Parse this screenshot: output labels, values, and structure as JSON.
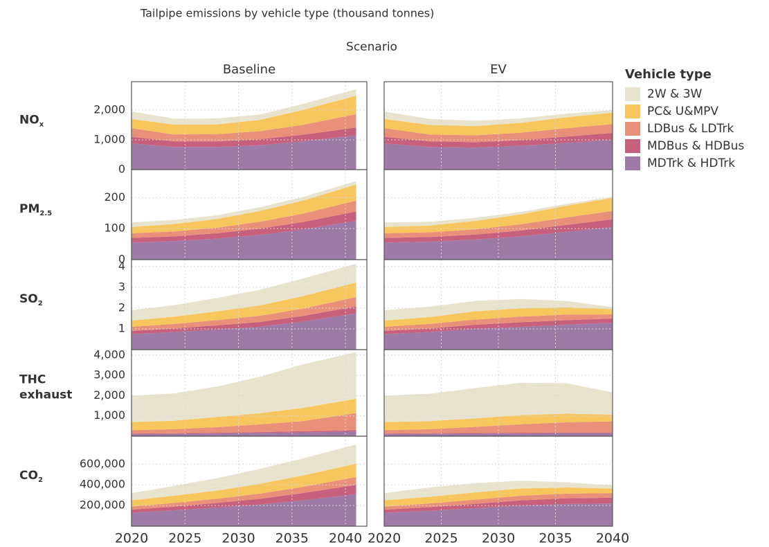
{
  "chart_data": {
    "type": "area",
    "title": "Tailpipe emissions by vehicle type (thousand tonnes)",
    "facet_title": "Scenario",
    "legend_title": "Vehicle type",
    "grid": true,
    "series": [
      {
        "name": "2W & 3W",
        "color": "#e8e3cf"
      },
      {
        "name": "PC& U&MPV",
        "color": "#f7c65d"
      },
      {
        "name": "LDBus & LDTrk",
        "color": "#e8907a"
      },
      {
        "name": "MDBus & HDBus",
        "color": "#c6607c"
      },
      {
        "name": "MDTrk & HDTrk",
        "color": "#9e7aa6"
      }
    ],
    "columns": [
      {
        "name": "Baseline",
        "x": [
          2020,
          2024,
          2028,
          2032,
          2036,
          2041
        ],
        "xlim": [
          2020,
          2042
        ],
        "xticks": [
          2020,
          2025,
          2030,
          2035,
          2040
        ]
      },
      {
        "name": "EV",
        "x": [
          2020,
          2024,
          2028,
          2032,
          2036,
          2040
        ],
        "xlim": [
          2020,
          2040
        ],
        "xticks": [
          2020,
          2025,
          2030,
          2035,
          2040
        ]
      }
    ],
    "rows": [
      {
        "label": [
          "NO"
        ],
        "sub": "x",
        "ylim": [
          0,
          2950
        ],
        "yticks": [
          0,
          {
            "value": 1000,
            "label": "1,000"
          },
          {
            "value": 2000,
            "label": "2,000"
          }
        ],
        "panels": [
          [
            [
              250,
              200,
              200,
              180,
              200,
              220
            ],
            [
              310,
              330,
              330,
              380,
              500,
              620
            ],
            [
              290,
              230,
              240,
              270,
              330,
              450
            ],
            [
              220,
              190,
              190,
              200,
              220,
              260
            ],
            [
              880,
              760,
              760,
              820,
              950,
              1150
            ]
          ],
          [
            [
              250,
              200,
              180,
              150,
              120,
              90
            ],
            [
              310,
              320,
              310,
              330,
              370,
              380
            ],
            [
              290,
              230,
              230,
              250,
              280,
              300
            ],
            [
              220,
              190,
              180,
              190,
              210,
              230
            ],
            [
              880,
              760,
              740,
              800,
              900,
              1000
            ]
          ]
        ]
      },
      {
        "label": [
          "PM"
        ],
        "sub": "2.5",
        "ylim": [
          0,
          290
        ],
        "yticks": [
          0,
          100,
          200
        ],
        "panels": [
          [
            [
              15,
              13,
              12,
              12,
              12,
              11
            ],
            [
              20,
              24,
              28,
              35,
              42,
              52
            ],
            [
              15,
              16,
              18,
              22,
              27,
              35
            ],
            [
              15,
              15,
              17,
              20,
              24,
              30
            ],
            [
              55,
              60,
              68,
              80,
              97,
              125
            ]
          ],
          [
            [
              15,
              12,
              10,
              8,
              6,
              4
            ],
            [
              20,
              22,
              27,
              32,
              38,
              42
            ],
            [
              15,
              15,
              17,
              20,
              24,
              27
            ],
            [
              15,
              15,
              16,
              19,
              22,
              25
            ],
            [
              55,
              58,
              65,
              75,
              90,
              105
            ]
          ]
        ]
      },
      {
        "label": [
          "SO"
        ],
        "sub": "2",
        "ylim": [
          0,
          4.33
        ],
        "yticks": [
          1,
          2,
          3,
          4
        ],
        "panels": [
          [
            [
              0.5,
              0.55,
              0.65,
              0.75,
              0.85,
              0.9
            ],
            [
              0.3,
              0.35,
              0.42,
              0.5,
              0.6,
              0.7
            ],
            [
              0.2,
              0.22,
              0.25,
              0.3,
              0.35,
              0.45
            ],
            [
              0.15,
              0.17,
              0.2,
              0.23,
              0.27,
              0.33
            ],
            [
              0.75,
              0.85,
              0.97,
              1.1,
              1.35,
              1.75
            ]
          ],
          [
            [
              0.5,
              0.5,
              0.5,
              0.45,
              0.3,
              0.1
            ],
            [
              0.3,
              0.33,
              0.4,
              0.4,
              0.35,
              0.25
            ],
            [
              0.2,
              0.22,
              0.25,
              0.27,
              0.27,
              0.2
            ],
            [
              0.15,
              0.17,
              0.2,
              0.22,
              0.22,
              0.2
            ],
            [
              0.75,
              0.85,
              1.0,
              1.1,
              1.2,
              1.3
            ]
          ]
        ]
      },
      {
        "label": [
          "THC",
          "exhaust"
        ],
        "ylim": [
          0,
          4270
        ],
        "yticks": [
          {
            "value": 1000,
            "label": "1,000"
          },
          {
            "value": 2000,
            "label": "2,000"
          },
          {
            "value": 3000,
            "label": "3,000"
          },
          {
            "value": 4000,
            "label": "4,000"
          }
        ],
        "panels": [
          [
            [
              1300,
              1350,
              1500,
              1800,
              2150,
              2300
            ],
            [
              400,
              420,
              500,
              550,
              650,
              700
            ],
            [
              170,
              200,
              280,
              380,
              500,
              850
            ],
            [
              30,
              35,
              40,
              45,
              55,
              65
            ],
            [
              100,
              110,
              130,
              160,
              190,
              230
            ]
          ],
          [
            [
              1300,
              1350,
              1500,
              1600,
              1500,
              1100
            ],
            [
              400,
              400,
              420,
              450,
              430,
              330
            ],
            [
              170,
              200,
              300,
              420,
              500,
              550
            ],
            [
              30,
              35,
              40,
              40,
              45,
              45
            ],
            [
              100,
              110,
              120,
              130,
              140,
              140
            ]
          ]
        ]
      },
      {
        "label": [
          "CO"
        ],
        "sub": "2",
        "ylim": [
          0,
          870000
        ],
        "yticks": [
          {
            "value": 200000,
            "label": "200,000"
          },
          {
            "value": 400000,
            "label": "400,000"
          },
          {
            "value": 600000,
            "label": "600,000"
          }
        ],
        "panels": [
          [
            [
              70000,
              95000,
              120000,
              145000,
              165000,
              185000
            ],
            [
              60000,
              70000,
              80000,
              95000,
              110000,
              130000
            ],
            [
              30000,
              35000,
              40000,
              50000,
              60000,
              75000
            ],
            [
              30000,
              35000,
              45000,
              55000,
              70000,
              90000
            ],
            [
              130000,
              155000,
              180000,
              210000,
              250000,
              310000
            ]
          ],
          [
            [
              70000,
              90000,
              90000,
              75000,
              50000,
              30000
            ],
            [
              60000,
              65000,
              70000,
              70000,
              60000,
              45000
            ],
            [
              30000,
              35000,
              40000,
              45000,
              45000,
              45000
            ],
            [
              30000,
              35000,
              42000,
              50000,
              55000,
              55000
            ],
            [
              130000,
              150000,
              175000,
              200000,
              215000,
              220000
            ]
          ]
        ]
      }
    ]
  }
}
